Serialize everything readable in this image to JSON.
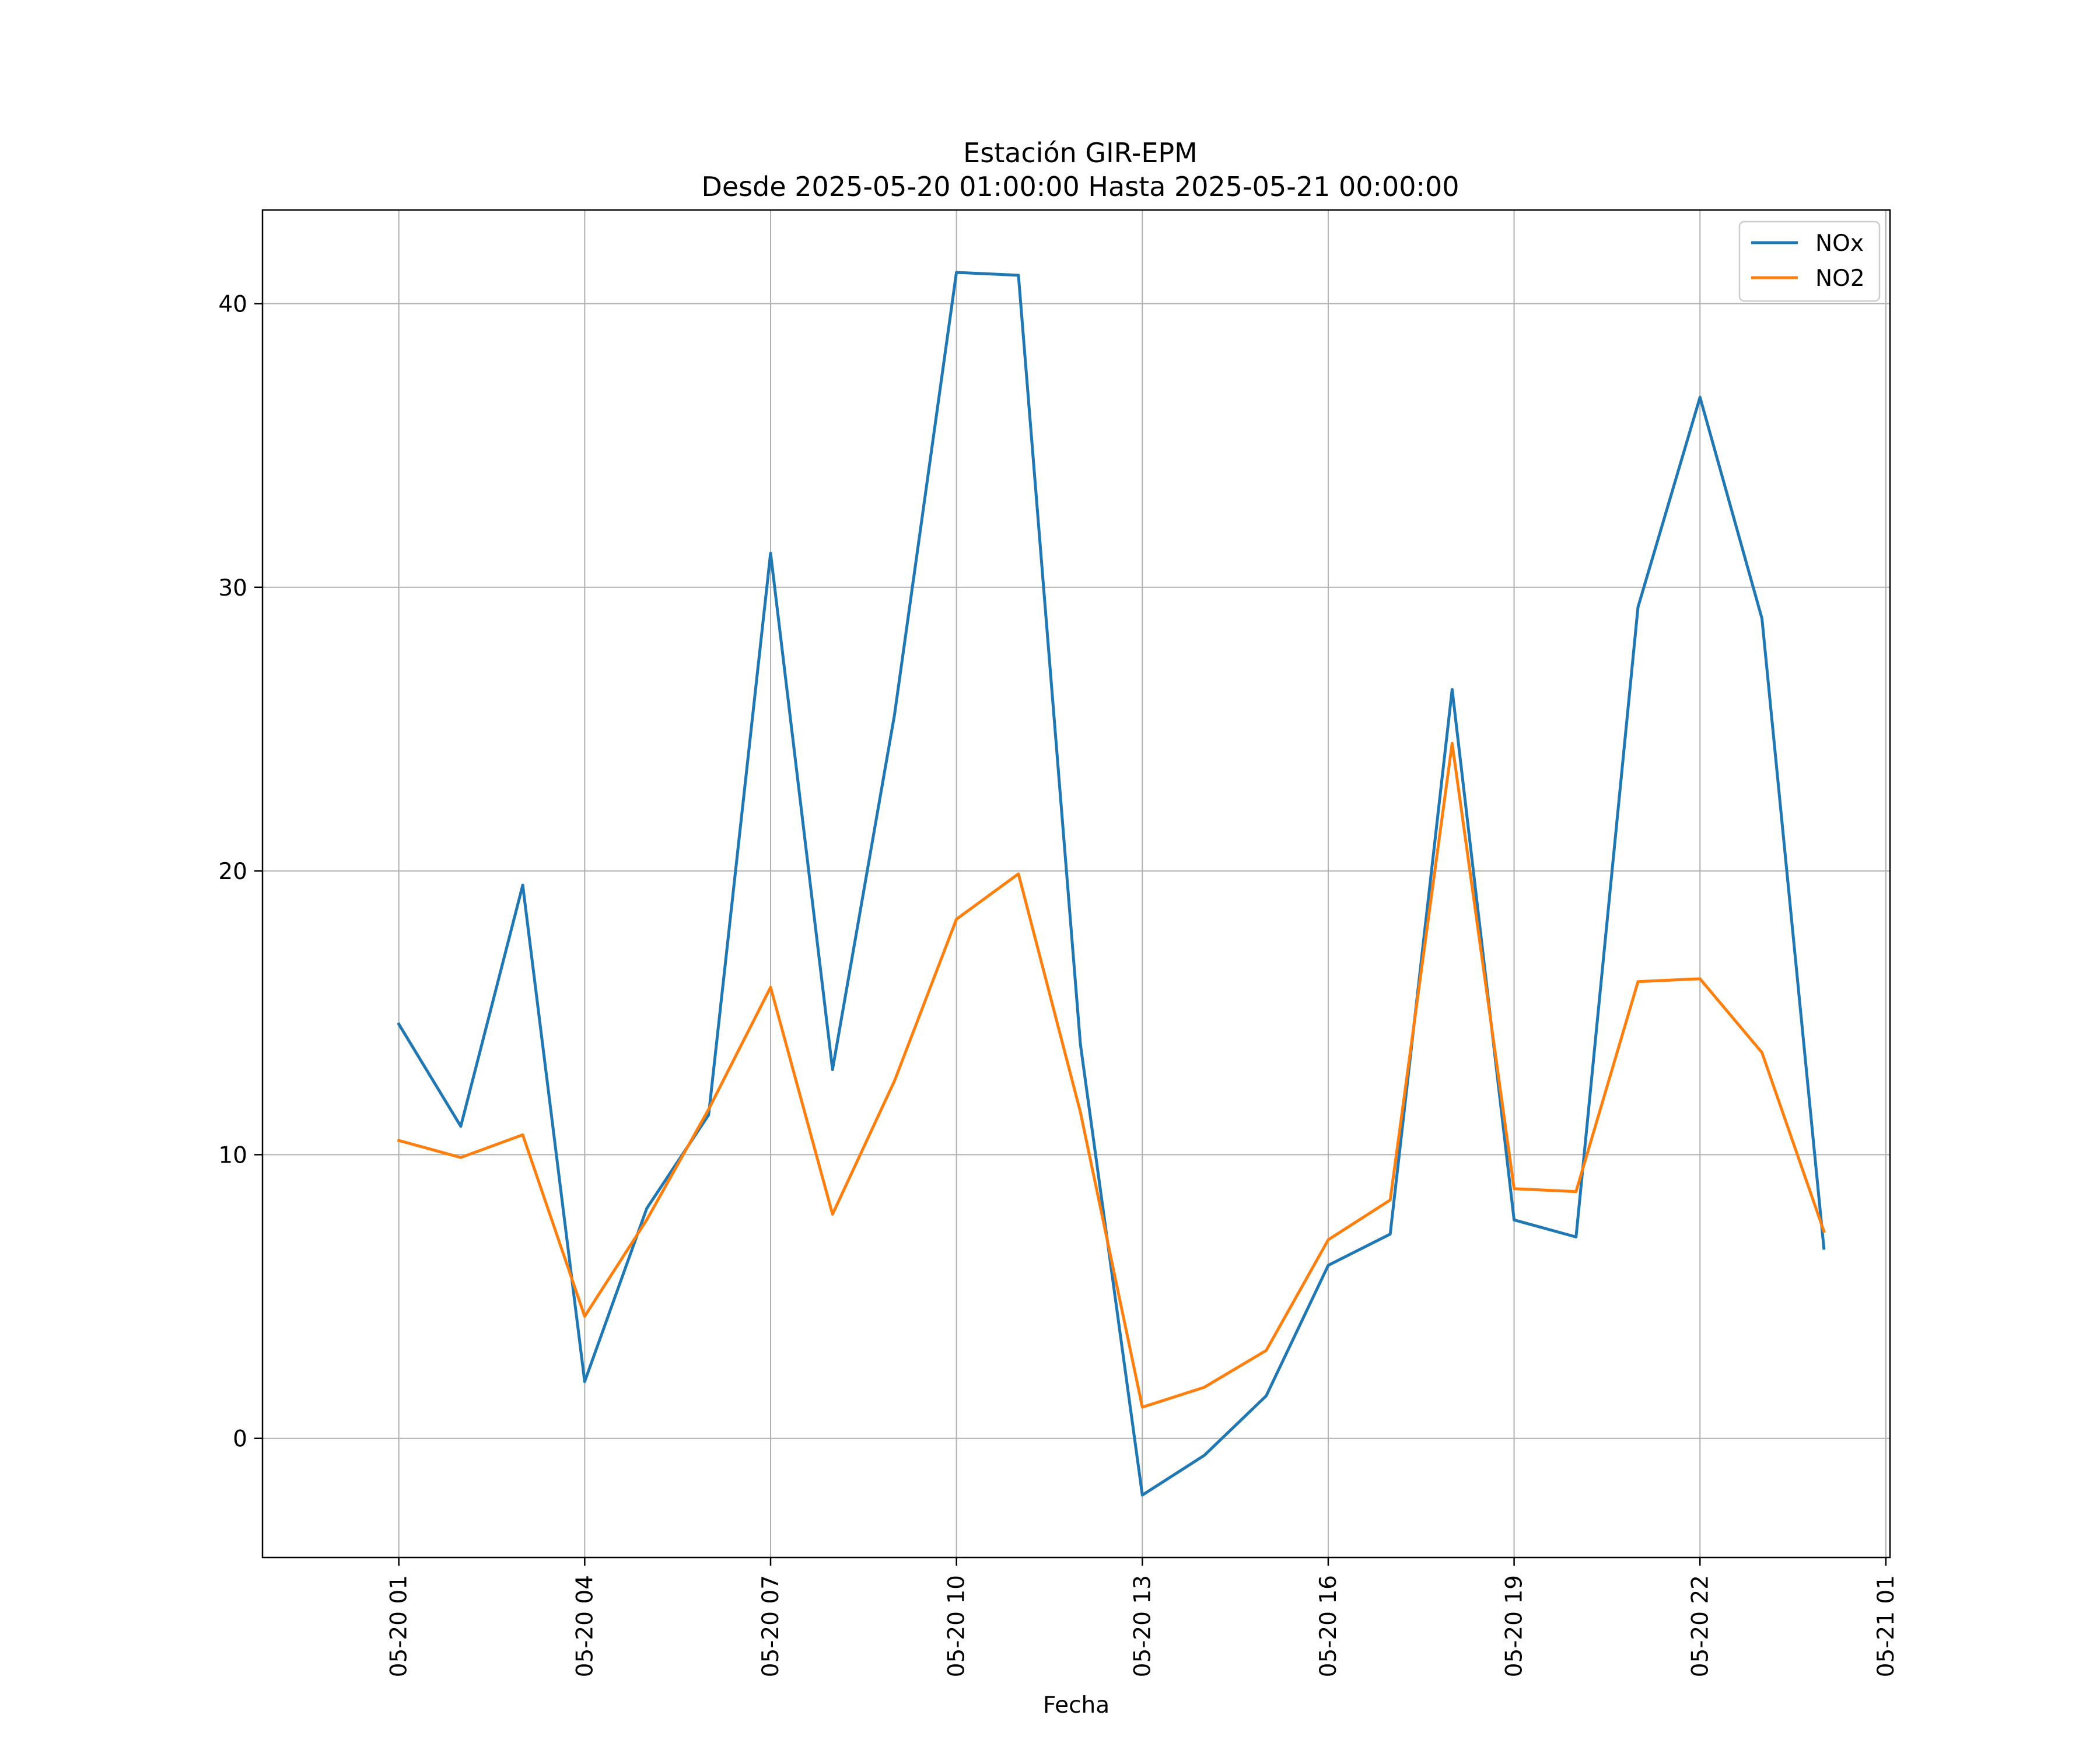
{
  "chart_data": {
    "type": "line",
    "title": "Estación GIR-EPM",
    "subtitle": "Desde 2025-05-20 01:00:00 Hasta 2025-05-21 00:00:00",
    "xlabel": "Fecha",
    "ylabel": "",
    "x": [
      "2025-05-20 01:00",
      "2025-05-20 02:00",
      "2025-05-20 03:00",
      "2025-05-20 04:00",
      "2025-05-20 05:00",
      "2025-05-20 06:00",
      "2025-05-20 07:00",
      "2025-05-20 08:00",
      "2025-05-20 09:00",
      "2025-05-20 10:00",
      "2025-05-20 11:00",
      "2025-05-20 12:00",
      "2025-05-20 13:00",
      "2025-05-20 14:00",
      "2025-05-20 15:00",
      "2025-05-20 16:00",
      "2025-05-20 17:00",
      "2025-05-20 18:00",
      "2025-05-20 19:00",
      "2025-05-20 20:00",
      "2025-05-20 21:00",
      "2025-05-20 22:00",
      "2025-05-20 23:00",
      "2025-05-21 00:00"
    ],
    "series": [
      {
        "name": "NOx",
        "color": "#1f77b4",
        "values": [
          14.6,
          11.0,
          19.5,
          2.0,
          8.1,
          11.4,
          31.2,
          13.0,
          25.5,
          41.1,
          41.0,
          13.9,
          -2.0,
          -0.6,
          1.5,
          6.1,
          7.2,
          26.4,
          7.7,
          7.1,
          29.3,
          36.7,
          28.9,
          6.7
        ]
      },
      {
        "name": "NO2",
        "color": "#ff7f0e",
        "values": [
          10.5,
          9.9,
          10.7,
          4.3,
          7.7,
          11.6,
          15.9,
          7.9,
          12.6,
          18.3,
          19.9,
          11.5,
          1.1,
          1.8,
          3.1,
          7.0,
          8.4,
          24.5,
          8.8,
          8.7,
          16.1,
          16.2,
          13.6,
          7.3
        ]
      }
    ],
    "xticks": [
      "05-20 01",
      "05-20 04",
      "05-20 07",
      "05-20 10",
      "05-20 13",
      "05-20 16",
      "05-20 19",
      "05-20 22",
      "05-21 01"
    ],
    "yticks": [
      "0",
      "10",
      "20",
      "30",
      "40"
    ],
    "xlim": [
      "2025-05-19 22:48",
      "2025-05-21 01:04"
    ],
    "ylim": [
      -4.2,
      43.3
    ],
    "grid": true,
    "legend": "top-right"
  }
}
